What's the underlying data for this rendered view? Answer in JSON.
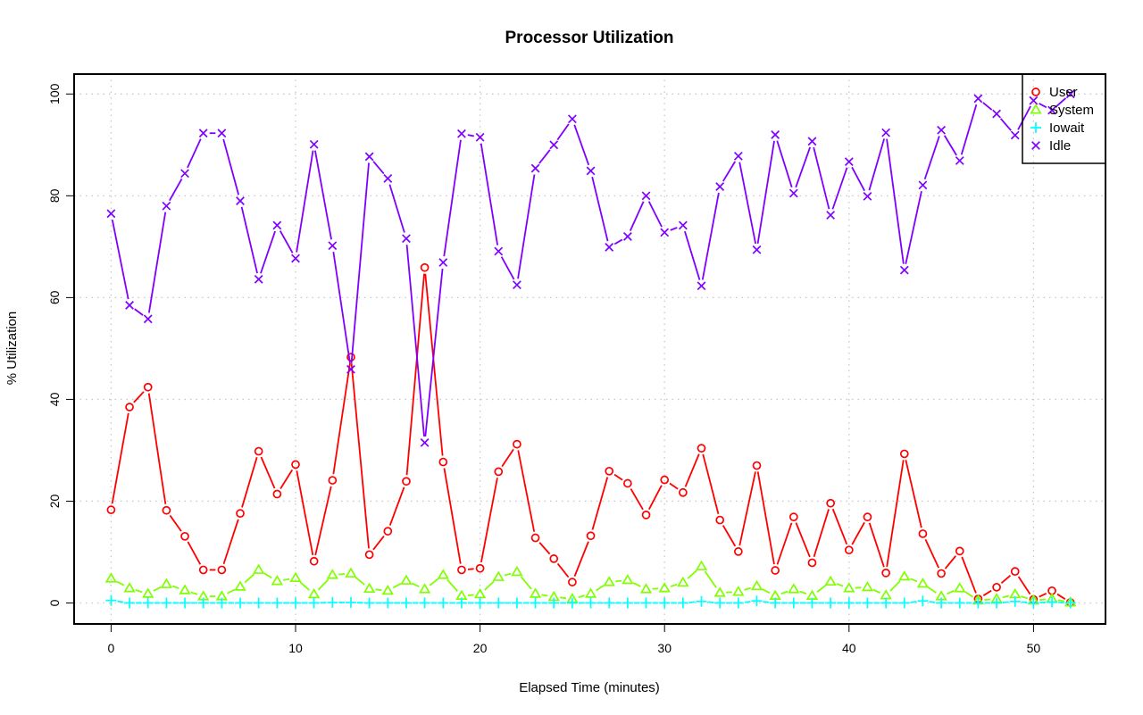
{
  "chart_data": {
    "type": "line",
    "title": "Processor Utilization",
    "xlabel": "Elapsed Time (minutes)",
    "ylabel": "% Utilization",
    "xlim": [
      -1.9,
      54.1
    ],
    "ylim": [
      -4,
      104
    ],
    "x_ticks": [
      0,
      10,
      20,
      30,
      40,
      50
    ],
    "y_ticks": [
      0,
      20,
      40,
      60,
      80,
      100
    ],
    "grid": true,
    "legend_position": "top-right",
    "x": [
      0,
      1,
      2,
      3,
      4,
      5,
      6,
      7,
      8,
      9,
      10,
      11,
      12,
      13,
      14,
      15,
      16,
      17,
      18,
      19,
      20,
      21,
      22,
      23,
      24,
      25,
      26,
      27,
      28,
      29,
      30,
      31,
      32,
      33,
      34,
      35,
      36,
      37,
      38,
      39,
      40,
      41,
      42,
      43,
      44,
      45,
      46,
      47,
      48,
      49,
      50,
      51,
      52
    ],
    "series": [
      {
        "name": "User",
        "color": "#ff0000",
        "marker": "circle",
        "values": [
          18.3,
          38.5,
          42.4,
          18.2,
          13.1,
          6.5,
          6.5,
          17.6,
          29.8,
          21.4,
          27.2,
          8.2,
          24.1,
          48.3,
          9.5,
          14.1,
          23.9,
          65.9,
          27.7,
          6.5,
          6.8,
          25.8,
          31.2,
          12.8,
          8.7,
          4.1,
          13.2,
          25.9,
          23.5,
          17.3,
          24.2,
          21.7,
          30.4,
          16.3,
          10.1,
          27.0,
          6.4,
          16.9,
          7.9,
          19.6,
          10.4,
          16.9,
          5.9,
          29.3,
          13.6,
          5.8,
          10.2,
          0.8,
          3.1,
          6.2,
          0.7,
          2.4,
          0.1
        ]
      },
      {
        "name": "System",
        "color": "#80ff00",
        "marker": "triangle",
        "values": [
          4.8,
          2.9,
          1.8,
          3.7,
          2.5,
          1.3,
          1.3,
          3.2,
          6.5,
          4.3,
          4.9,
          1.7,
          5.5,
          5.8,
          2.8,
          2.4,
          4.4,
          2.7,
          5.5,
          1.4,
          1.7,
          5.1,
          6.1,
          1.8,
          1.2,
          0.8,
          1.8,
          4.1,
          4.5,
          2.7,
          2.9,
          4.0,
          7.2,
          2.0,
          2.2,
          3.3,
          1.4,
          2.7,
          1.4,
          4.2,
          2.9,
          3.1,
          1.5,
          5.2,
          3.8,
          1.3,
          2.9,
          0.5,
          0.8,
          1.7,
          0.5,
          0.8,
          0.1
        ]
      },
      {
        "name": "Iowait",
        "color": "#00ffff",
        "marker": "plus",
        "values": [
          0.5,
          0,
          0,
          0,
          0,
          0,
          0,
          0,
          0,
          0,
          0,
          0,
          0.1,
          0.1,
          0,
          0,
          0,
          0,
          0,
          0,
          0,
          0,
          0,
          0,
          0,
          0,
          0,
          0,
          0,
          0,
          0,
          0,
          0.3,
          0,
          0,
          0.4,
          0,
          0,
          0,
          0,
          0,
          0,
          0,
          0,
          0.4,
          0,
          0,
          0,
          0,
          0.3,
          0,
          0.2,
          0
        ]
      },
      {
        "name": "Idle",
        "color": "#8000ff",
        "marker": "x",
        "values": [
          76.5,
          58.5,
          55.8,
          78.0,
          84.4,
          92.3,
          92.3,
          79.0,
          63.6,
          74.2,
          67.7,
          90.1,
          70.2,
          45.9,
          87.7,
          83.4,
          71.6,
          31.5,
          66.9,
          92.2,
          91.5,
          69.1,
          62.5,
          85.4,
          90.0,
          95.1,
          84.9,
          69.9,
          72.0,
          80.0,
          72.8,
          74.2,
          62.3,
          81.8,
          87.8,
          69.4,
          92.0,
          80.5,
          90.7,
          76.2,
          86.7,
          79.9,
          92.4,
          65.4,
          82.1,
          92.9,
          86.9,
          99.1,
          96.1,
          91.9,
          98.7,
          96.8,
          100.0
        ]
      }
    ]
  }
}
